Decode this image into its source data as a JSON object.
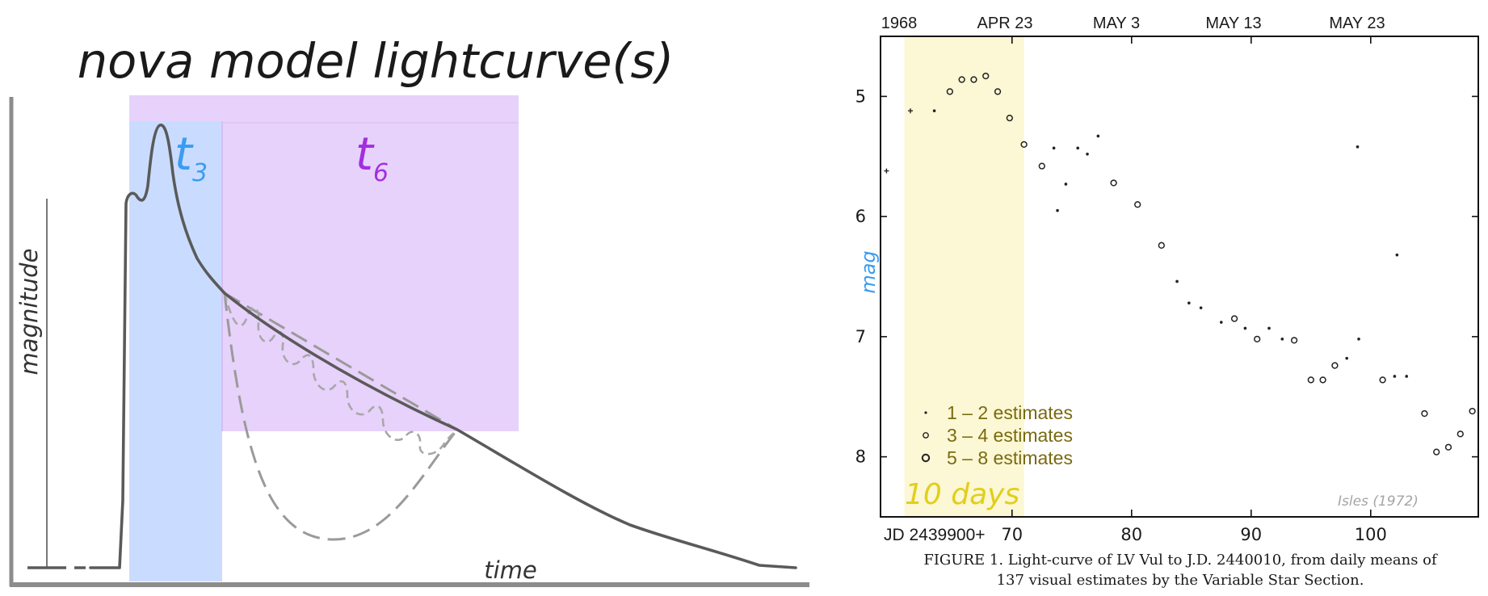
{
  "colors": {
    "t3_band": "#c9dcff",
    "t6_band": "#e7d2fb",
    "t3_text": "#3b9cf0",
    "t6_text": "#a22ee0",
    "curve": "#5a5a5a",
    "dashed": "#9a9a9a",
    "yellow_band": "#fcf7d4",
    "yellow_text": "#e2ce1a",
    "olive_text": "#7a6a10",
    "mag_label": "#3b9cf0",
    "credit": "#a5a5a5"
  },
  "chart_data": [
    {
      "type": "line",
      "title": "nova model lightcurve(s)",
      "xlabel": "time",
      "ylabel": "magnitude",
      "annotations": [
        {
          "label": "t",
          "subscript": "3",
          "color": "#3b9cf0"
        },
        {
          "label": "t",
          "subscript": "6",
          "color": "#a22ee0"
        }
      ],
      "series": [
        {
          "style": "solid"
        },
        {
          "style": "dashed"
        }
      ]
    },
    {
      "type": "scatter",
      "x_axis_top": [
        "1968",
        "APR 23",
        "MAY 3",
        "MAY 13",
        "MAY 23"
      ],
      "x_ticks": [
        "JD 2439900+",
        "70",
        "80",
        "90",
        "100"
      ],
      "y_ticks": [
        "5",
        "6",
        "7",
        "8"
      ],
      "ylabel": "mag",
      "ylim": [
        8.5,
        4.5
      ],
      "xlim": [
        59,
        109
      ],
      "y_inverted": true,
      "highlight_band": {
        "x_from": 61,
        "x_to": 71,
        "label": "10 days"
      },
      "legend": [
        {
          "marker": "small-dot",
          "label": "1 – 2 estimates"
        },
        {
          "marker": "small-circle",
          "label": "3 – 4 estimates"
        },
        {
          "marker": "large-circle",
          "label": "5 – 8 estimates"
        }
      ],
      "credit": "Isles (1972)",
      "caption_line1": "FIGURE 1.  Light-curve of LV Vul to J.D. 2440010, from daily means of",
      "caption_line2": "137 visual estimates by the Variable Star Section.",
      "points": [
        {
          "x": 59.5,
          "y": 5.62,
          "m": "plus"
        },
        {
          "x": 61.5,
          "y": 5.12,
          "m": "plus"
        },
        {
          "x": 63.5,
          "y": 5.12,
          "m": "dot"
        },
        {
          "x": 64.8,
          "y": 4.96,
          "m": "circle"
        },
        {
          "x": 65.8,
          "y": 4.86,
          "m": "circle"
        },
        {
          "x": 66.8,
          "y": 4.86,
          "m": "circle"
        },
        {
          "x": 67.8,
          "y": 4.83,
          "m": "circle"
        },
        {
          "x": 68.8,
          "y": 4.96,
          "m": "circle"
        },
        {
          "x": 69.8,
          "y": 5.18,
          "m": "circle"
        },
        {
          "x": 71.0,
          "y": 5.4,
          "m": "circle"
        },
        {
          "x": 72.5,
          "y": 5.58,
          "m": "circle"
        },
        {
          "x": 73.5,
          "y": 5.43,
          "m": "dot"
        },
        {
          "x": 73.8,
          "y": 5.95,
          "m": "dot"
        },
        {
          "x": 74.5,
          "y": 5.73,
          "m": "dot"
        },
        {
          "x": 75.5,
          "y": 5.43,
          "m": "dot"
        },
        {
          "x": 76.3,
          "y": 5.48,
          "m": "dot"
        },
        {
          "x": 77.2,
          "y": 5.33,
          "m": "dot"
        },
        {
          "x": 78.5,
          "y": 5.72,
          "m": "circle"
        },
        {
          "x": 80.5,
          "y": 5.9,
          "m": "circle"
        },
        {
          "x": 82.5,
          "y": 6.24,
          "m": "circle"
        },
        {
          "x": 83.8,
          "y": 6.54,
          "m": "dot"
        },
        {
          "x": 84.8,
          "y": 6.72,
          "m": "dot"
        },
        {
          "x": 85.8,
          "y": 6.76,
          "m": "dot"
        },
        {
          "x": 87.5,
          "y": 6.88,
          "m": "dot"
        },
        {
          "x": 88.6,
          "y": 6.85,
          "m": "circle"
        },
        {
          "x": 89.5,
          "y": 6.93,
          "m": "dot"
        },
        {
          "x": 90.5,
          "y": 7.02,
          "m": "circle"
        },
        {
          "x": 91.5,
          "y": 6.93,
          "m": "dot"
        },
        {
          "x": 92.6,
          "y": 7.02,
          "m": "dot"
        },
        {
          "x": 93.6,
          "y": 7.03,
          "m": "circle"
        },
        {
          "x": 95.0,
          "y": 7.36,
          "m": "circle"
        },
        {
          "x": 96.0,
          "y": 7.36,
          "m": "circle"
        },
        {
          "x": 97.0,
          "y": 7.24,
          "m": "circle"
        },
        {
          "x": 98.0,
          "y": 7.18,
          "m": "dot"
        },
        {
          "x": 99.0,
          "y": 7.02,
          "m": "dot"
        },
        {
          "x": 98.9,
          "y": 5.42,
          "m": "dot"
        },
        {
          "x": 101.0,
          "y": 7.36,
          "m": "circle"
        },
        {
          "x": 102.0,
          "y": 7.33,
          "m": "dot"
        },
        {
          "x": 103.0,
          "y": 7.33,
          "m": "dot"
        },
        {
          "x": 102.2,
          "y": 6.32,
          "m": "dot"
        },
        {
          "x": 104.5,
          "y": 7.64,
          "m": "circle"
        },
        {
          "x": 105.5,
          "y": 7.96,
          "m": "circle"
        },
        {
          "x": 106.5,
          "y": 7.92,
          "m": "circle"
        },
        {
          "x": 107.5,
          "y": 7.81,
          "m": "circle"
        },
        {
          "x": 108.5,
          "y": 7.62,
          "m": "circle"
        }
      ]
    }
  ]
}
